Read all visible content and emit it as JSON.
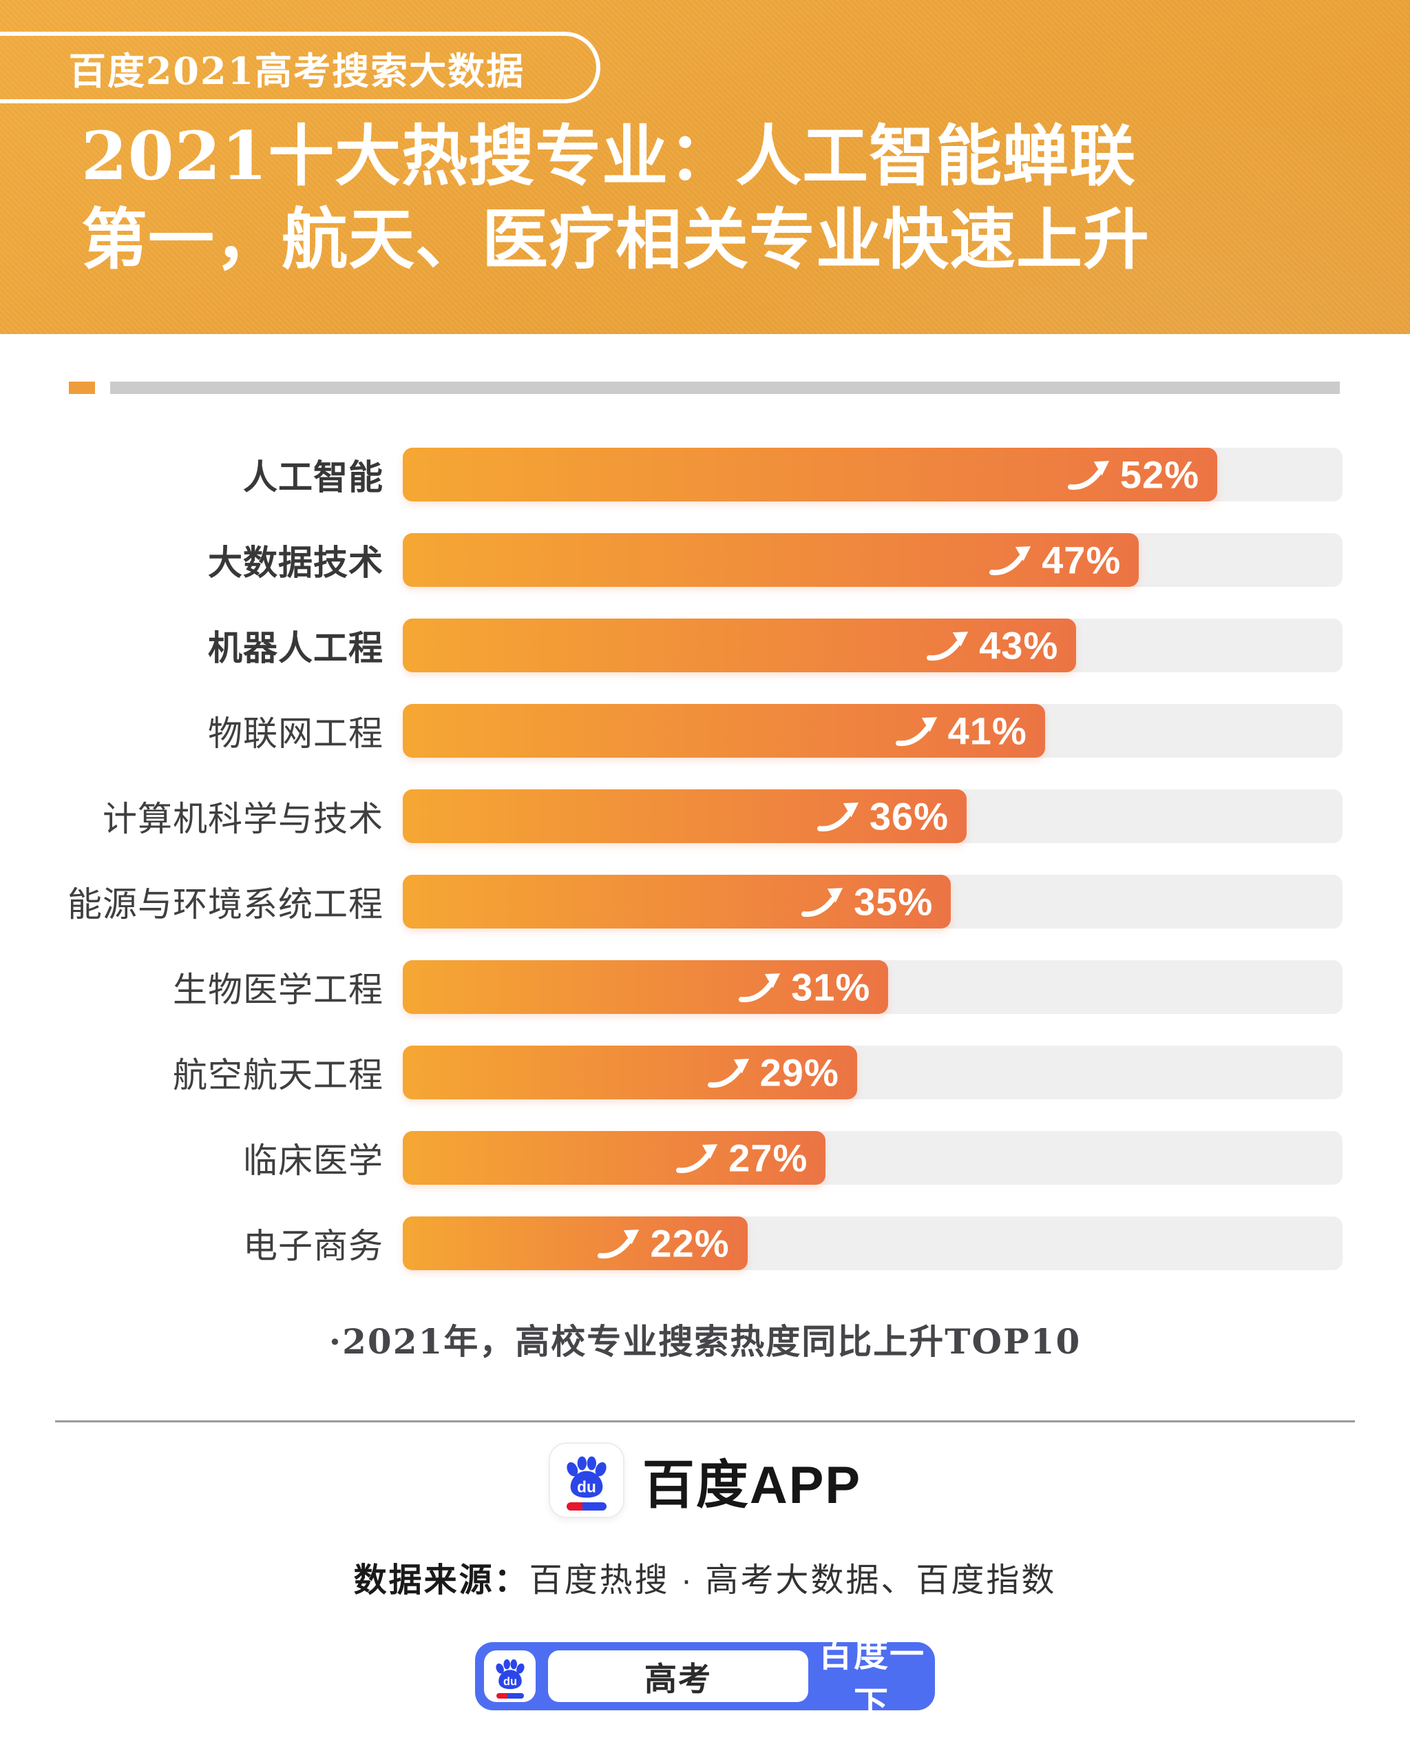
{
  "header": {
    "badge": "百度2021高考搜索大数据",
    "title_lines": [
      "2021十大热搜专业：人工智能蝉联",
      "第一，航天、医疗相关专业快速上升"
    ]
  },
  "chart_data": {
    "type": "bar",
    "orientation": "horizontal",
    "title": "2021十大热搜专业：人工智能蝉联第一，航天、医疗相关专业快速上升",
    "categories": [
      "人工智能",
      "大数据技术",
      "机器人工程",
      "物联网工程",
      "计算机科学与技术",
      "能源与环境系统工程",
      "生物医学工程",
      "航空航天工程",
      "临床医学",
      "电子商务"
    ],
    "values": [
      52,
      47,
      43,
      41,
      36,
      35,
      31,
      29,
      27,
      22
    ],
    "unit": "%",
    "xlim": [
      0,
      60
    ],
    "bold_categories_count": 3,
    "grid": false,
    "legend": false,
    "note": "·2021年，高校专业搜索热度同比上升TOP10"
  },
  "footer": {
    "app_name": "百度APP",
    "source_label": "数据来源：",
    "source_text": "百度热搜 · 高考大数据、百度指数",
    "search_bar": {
      "query": "高考",
      "button_label": "百度一下"
    }
  },
  "colors": {
    "header_bg": "#EDA53C",
    "bar_gradient_start": "#F5A733",
    "bar_gradient_end": "#EC7444",
    "bar_track": "#EFEFEF",
    "label_text": "#3F3F3F",
    "baidu_blue": "#4E6EF2",
    "paw_blue": "#2B46E8",
    "brand_red": "#E6162D",
    "divider_gray": "#CBCBCB"
  }
}
